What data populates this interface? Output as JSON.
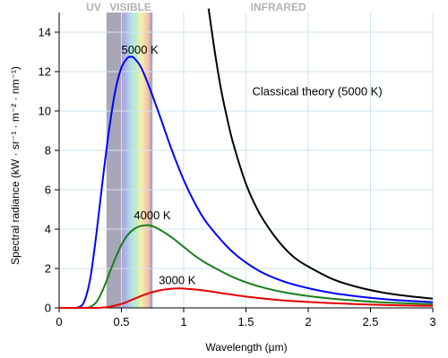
{
  "chart_data": {
    "type": "line",
    "xlabel": "Wavelength (μm)",
    "ylabel": "Spectral radiance (kW · sr⁻¹ · m⁻² · nm⁻¹)",
    "xlim": [
      0,
      3
    ],
    "ylim": [
      0,
      15
    ],
    "x_ticks": [
      0,
      0.5,
      1,
      1.5,
      2,
      2.5,
      3
    ],
    "x_tick_labels": [
      "0",
      "0.5",
      "1",
      "1.5",
      "2",
      "2.5",
      "3"
    ],
    "y_ticks": [
      0,
      2,
      4,
      6,
      8,
      10,
      12,
      14
    ],
    "y_tick_labels": [
      "0",
      "2",
      "4",
      "6",
      "8",
      "10",
      "12",
      "14"
    ],
    "grid": true,
    "bands": [
      {
        "label": "UV",
        "range": [
          0,
          0.38
        ],
        "color": "#b3b3b3"
      },
      {
        "label": "VISIBLE",
        "range": [
          0.38,
          0.75
        ],
        "color": "#b3b3b3"
      },
      {
        "label": "INFRARED",
        "range": [
          0.75,
          3
        ],
        "color": "#b3b3b3"
      }
    ],
    "series": [
      {
        "name": "Classical theory (5000 K)",
        "color": "#000000",
        "x": [
          1.2,
          1.25,
          1.3,
          1.35,
          1.4,
          1.5,
          1.6,
          1.7,
          1.8,
          1.9,
          2.0,
          2.2,
          2.4,
          2.6,
          2.8,
          3.0
        ],
        "values": [
          15.2,
          13.0,
          11.1,
          9.6,
          8.3,
          6.3,
          4.9,
          3.9,
          3.1,
          2.5,
          2.1,
          1.45,
          1.05,
          0.78,
          0.6,
          0.47
        ]
      },
      {
        "name": "5000 K",
        "color": "#0000ff",
        "x": [
          0,
          0.1,
          0.15,
          0.2,
          0.25,
          0.3,
          0.35,
          0.4,
          0.45,
          0.5,
          0.55,
          0.58,
          0.6,
          0.65,
          0.7,
          0.8,
          0.9,
          1.0,
          1.1,
          1.2,
          1.4,
          1.6,
          1.8,
          2.0,
          2.2,
          2.4,
          2.6,
          2.8,
          3.0
        ],
        "values": [
          0,
          0.0,
          0.02,
          0.3,
          1.5,
          3.8,
          6.5,
          9.0,
          11.0,
          12.2,
          12.7,
          12.75,
          12.7,
          12.3,
          11.6,
          9.9,
          8.1,
          6.5,
          5.2,
          4.2,
          2.8,
          1.9,
          1.35,
          1.0,
          0.75,
          0.58,
          0.45,
          0.36,
          0.29
        ]
      },
      {
        "name": "4000 K",
        "color": "#1a7f1a",
        "x": [
          0,
          0.2,
          0.25,
          0.3,
          0.35,
          0.4,
          0.45,
          0.5,
          0.55,
          0.6,
          0.65,
          0.7,
          0.72,
          0.75,
          0.8,
          0.9,
          1.0,
          1.1,
          1.2,
          1.4,
          1.6,
          1.8,
          2.0,
          2.2,
          2.4,
          2.6,
          2.8,
          3.0
        ],
        "values": [
          0,
          0.0,
          0.05,
          0.3,
          0.9,
          1.7,
          2.5,
          3.2,
          3.7,
          4.0,
          4.15,
          4.2,
          4.2,
          4.15,
          4.0,
          3.6,
          3.1,
          2.6,
          2.2,
          1.55,
          1.1,
          0.8,
          0.6,
          0.46,
          0.36,
          0.28,
          0.23,
          0.19
        ]
      },
      {
        "name": "3000 K",
        "color": "#e60000",
        "x": [
          0,
          0.3,
          0.35,
          0.4,
          0.5,
          0.6,
          0.7,
          0.8,
          0.9,
          0.97,
          1.0,
          1.1,
          1.2,
          1.4,
          1.6,
          1.8,
          2.0,
          2.2,
          2.4,
          2.6,
          2.8,
          3.0
        ],
        "values": [
          0,
          0.0,
          0.02,
          0.05,
          0.2,
          0.45,
          0.7,
          0.88,
          0.97,
          0.99,
          0.98,
          0.93,
          0.85,
          0.66,
          0.5,
          0.38,
          0.3,
          0.24,
          0.19,
          0.15,
          0.12,
          0.1
        ]
      }
    ],
    "annotations": [
      {
        "text": "5000 K",
        "x": 0.5,
        "y": 12.9
      },
      {
        "text": "4000 K",
        "x": 0.6,
        "y": 4.5
      },
      {
        "text": "3000 K",
        "x": 0.8,
        "y": 1.2
      },
      {
        "text": "Classical theory (5000 K)",
        "x": 1.55,
        "y": 10.8
      }
    ]
  }
}
